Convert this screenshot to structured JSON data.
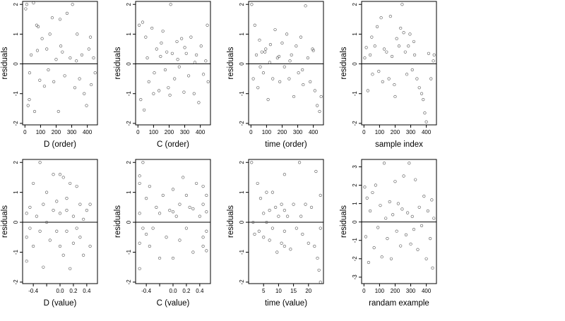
{
  "chart_data": [
    {
      "type": "scatter",
      "xlabel": "D (order)",
      "ylabel": "residuals",
      "xlim": [
        -15,
        465
      ],
      "ylim": [
        -2.05,
        2.1
      ],
      "xticks": [
        0,
        100,
        200,
        300,
        400
      ],
      "yticks": [
        -2,
        -1,
        0,
        1,
        2
      ],
      "reference_line_y": 0,
      "points": [
        [
          5,
          1.85
        ],
        [
          12,
          2.0
        ],
        [
          20,
          -1.4
        ],
        [
          28,
          -1.2
        ],
        [
          40,
          0.3
        ],
        [
          55,
          2.05
        ],
        [
          62,
          -1.6
        ],
        [
          75,
          1.3
        ],
        [
          85,
          1.25
        ],
        [
          95,
          -0.55
        ],
        [
          110,
          0.85
        ],
        [
          125,
          -0.75
        ],
        [
          140,
          0.5
        ],
        [
          160,
          1.0
        ],
        [
          175,
          1.55
        ],
        [
          185,
          -0.6
        ],
        [
          200,
          0.15
        ],
        [
          215,
          -1.6
        ],
        [
          225,
          1.5
        ],
        [
          240,
          0.4
        ],
        [
          255,
          -0.4
        ],
        [
          270,
          1.7
        ],
        [
          290,
          0.2
        ],
        [
          305,
          2.0
        ],
        [
          320,
          -0.8
        ],
        [
          335,
          1.0
        ],
        [
          350,
          -0.5
        ],
        [
          365,
          0.3
        ],
        [
          380,
          -1.0
        ],
        [
          395,
          -1.4
        ],
        [
          410,
          0.5
        ],
        [
          425,
          -0.7
        ],
        [
          440,
          0.2
        ],
        [
          450,
          -0.3
        ],
        [
          30,
          -0.3
        ],
        [
          80,
          0.45
        ],
        [
          150,
          -0.2
        ],
        [
          230,
          0.6
        ],
        [
          330,
          0.1
        ],
        [
          420,
          0.9
        ]
      ]
    },
    {
      "type": "scatter",
      "xlabel": "C (order)",
      "ylabel": "residuals",
      "xlim": [
        -15,
        465
      ],
      "ylim": [
        -2.05,
        2.1
      ],
      "xticks": [
        0,
        100,
        200,
        300,
        400
      ],
      "yticks": [
        -2,
        -1,
        0,
        1,
        2
      ],
      "reference_line_y": 0,
      "points": [
        [
          8,
          1.3
        ],
        [
          18,
          -1.2
        ],
        [
          30,
          1.4
        ],
        [
          40,
          -1.55
        ],
        [
          50,
          0.9
        ],
        [
          70,
          -0.6
        ],
        [
          90,
          1.2
        ],
        [
          105,
          -0.3
        ],
        [
          120,
          0.5
        ],
        [
          135,
          -0.9
        ],
        [
          150,
          0.7
        ],
        [
          160,
          1.1
        ],
        [
          175,
          -0.2
        ],
        [
          185,
          0.4
        ],
        [
          195,
          -0.8
        ],
        [
          210,
          2.0
        ],
        [
          220,
          0.35
        ],
        [
          235,
          -0.5
        ],
        [
          250,
          0.75
        ],
        [
          265,
          -0.1
        ],
        [
          280,
          0.85
        ],
        [
          295,
          -0.95
        ],
        [
          310,
          0.35
        ],
        [
          325,
          -0.4
        ],
        [
          340,
          0.9
        ],
        [
          360,
          -1.0
        ],
        [
          375,
          0.3
        ],
        [
          390,
          -1.3
        ],
        [
          405,
          0.6
        ],
        [
          420,
          -0.35
        ],
        [
          435,
          0.1
        ],
        [
          450,
          -0.6
        ],
        [
          60,
          0.2
        ],
        [
          145,
          0.25
        ],
        [
          255,
          0.15
        ],
        [
          365,
          0.05
        ],
        [
          445,
          1.3
        ],
        [
          100,
          -1.0
        ],
        [
          205,
          -1.05
        ],
        [
          300,
          0.55
        ]
      ]
    },
    {
      "type": "scatter",
      "xlabel": "time (order)",
      "ylabel": "residuals",
      "xlim": [
        -15,
        465
      ],
      "ylim": [
        -2.05,
        2.1
      ],
      "xticks": [
        0,
        100,
        200,
        300,
        400
      ],
      "yticks": [
        -2,
        -1,
        0,
        1,
        2
      ],
      "reference_line_y": 0,
      "points": [
        [
          5,
          2.0
        ],
        [
          15,
          -0.5
        ],
        [
          25,
          1.3
        ],
        [
          35,
          0.3
        ],
        [
          45,
          -0.8
        ],
        [
          55,
          0.8
        ],
        [
          70,
          0.4
        ],
        [
          80,
          -0.3
        ],
        [
          95,
          0.5
        ],
        [
          110,
          -1.2
        ],
        [
          125,
          0.65
        ],
        [
          140,
          -0.5
        ],
        [
          155,
          1.15
        ],
        [
          170,
          0.2
        ],
        [
          185,
          -0.6
        ],
        [
          200,
          0.7
        ],
        [
          215,
          -0.1
        ],
        [
          230,
          1.0
        ],
        [
          245,
          -0.5
        ],
        [
          260,
          0.3
        ],
        [
          275,
          -1.1
        ],
        [
          290,
          0.6
        ],
        [
          305,
          -0.3
        ],
        [
          320,
          0.9
        ],
        [
          335,
          -0.7
        ],
        [
          350,
          1.95
        ],
        [
          365,
          0.2
        ],
        [
          380,
          -0.6
        ],
        [
          395,
          0.5
        ],
        [
          410,
          -0.9
        ],
        [
          425,
          -1.4
        ],
        [
          440,
          -1.6
        ],
        [
          450,
          -1.1
        ],
        [
          90,
          0.4
        ],
        [
          180,
          0.25
        ],
        [
          250,
          0.1
        ],
        [
          330,
          -0.2
        ],
        [
          400,
          0.45
        ],
        [
          120,
          0.05
        ],
        [
          60,
          -0.1
        ]
      ]
    },
    {
      "type": "scatter",
      "xlabel": "sample index",
      "ylabel": "residuals",
      "xlim": [
        -15,
        465
      ],
      "ylim": [
        -2.05,
        2.1
      ],
      "xticks": [
        0,
        100,
        200,
        300,
        400
      ],
      "yticks": [
        -2,
        -1,
        0,
        1,
        2
      ],
      "reference_line_y": 0,
      "points": [
        [
          5,
          0.2
        ],
        [
          15,
          0.55
        ],
        [
          25,
          -0.9
        ],
        [
          40,
          0.3
        ],
        [
          55,
          -0.35
        ],
        [
          70,
          0.6
        ],
        [
          85,
          1.25
        ],
        [
          95,
          -0.25
        ],
        [
          110,
          1.55
        ],
        [
          120,
          -0.6
        ],
        [
          130,
          0.5
        ],
        [
          145,
          0.4
        ],
        [
          160,
          -0.5
        ],
        [
          170,
          1.6
        ],
        [
          180,
          0.25
        ],
        [
          195,
          -0.7
        ],
        [
          210,
          0.85
        ],
        [
          225,
          0.6
        ],
        [
          235,
          1.2
        ],
        [
          245,
          2.0
        ],
        [
          255,
          1.05
        ],
        [
          265,
          0.4
        ],
        [
          275,
          -0.35
        ],
        [
          285,
          0.6
        ],
        [
          295,
          1.0
        ],
        [
          310,
          -0.2
        ],
        [
          325,
          0.3
        ],
        [
          340,
          -0.5
        ],
        [
          355,
          -0.8
        ],
        [
          370,
          -1.0
        ],
        [
          380,
          -1.2
        ],
        [
          390,
          -1.65
        ],
        [
          400,
          -1.95
        ],
        [
          415,
          0.35
        ],
        [
          430,
          -0.5
        ],
        [
          445,
          0.1
        ],
        [
          450,
          0.3
        ],
        [
          50,
          0.9
        ],
        [
          200,
          -1.1
        ],
        [
          320,
          0.75
        ]
      ]
    },
    {
      "type": "scatter",
      "xlabel": "D (value)",
      "ylabel": "residuals",
      "xlim": [
        -0.56,
        0.56
      ],
      "ylim": [
        -2.05,
        2.1
      ],
      "xticks": [
        -0.4,
        -0.2,
        0.0,
        0.2,
        0.4
      ],
      "xtick_labels": [
        "-0.4",
        "",
        "0.0",
        "0.2",
        "0.4"
      ],
      "yticks": [
        -2,
        -1,
        0,
        1,
        2
      ],
      "reference_line_y": 0,
      "points": [
        [
          -0.5,
          -0.5
        ],
        [
          -0.5,
          0.3
        ],
        [
          -0.5,
          -1.3
        ],
        [
          -0.45,
          -0.2
        ],
        [
          -0.45,
          0.5
        ],
        [
          -0.4,
          -0.8
        ],
        [
          -0.4,
          1.3
        ],
        [
          -0.35,
          0.2
        ],
        [
          -0.3,
          -0.3
        ],
        [
          -0.3,
          2.0
        ],
        [
          -0.25,
          0.6
        ],
        [
          -0.25,
          -1.5
        ],
        [
          -0.2,
          0.0
        ],
        [
          -0.2,
          1.0
        ],
        [
          -0.15,
          -0.6
        ],
        [
          -0.1,
          0.4
        ],
        [
          -0.1,
          1.6
        ],
        [
          -0.05,
          -0.3
        ],
        [
          0.0,
          1.6
        ],
        [
          0.0,
          -0.8
        ],
        [
          0.0,
          0.3
        ],
        [
          0.05,
          1.5
        ],
        [
          0.05,
          -1.1
        ],
        [
          0.1,
          0.4
        ],
        [
          0.1,
          -0.3
        ],
        [
          0.1,
          0.8
        ],
        [
          0.15,
          1.3
        ],
        [
          0.15,
          -1.55
        ],
        [
          0.2,
          0.2
        ],
        [
          0.2,
          -0.7
        ],
        [
          0.25,
          1.2
        ],
        [
          0.3,
          -0.5
        ],
        [
          0.3,
          0.6
        ],
        [
          0.35,
          -1.1
        ],
        [
          0.4,
          0.4
        ],
        [
          0.45,
          -0.8
        ],
        [
          0.45,
          0.6
        ],
        [
          -0.05,
          0.7
        ],
        [
          0.25,
          -0.2
        ],
        [
          0.35,
          0.1
        ]
      ]
    },
    {
      "type": "scatter",
      "xlabel": "C (value)",
      "ylabel": "residuals",
      "xlim": [
        -0.56,
        0.56
      ],
      "ylim": [
        -2.05,
        2.1
      ],
      "xticks": [
        -0.4,
        -0.2,
        0.0,
        0.2,
        0.4
      ],
      "xtick_labels": [
        "-0.4",
        "",
        "0.0",
        "0.2",
        "0.4"
      ],
      "yticks": [
        -2,
        -1,
        0,
        1,
        2
      ],
      "reference_line_y": 0,
      "points": [
        [
          -0.5,
          1.3
        ],
        [
          -0.5,
          -0.7
        ],
        [
          -0.5,
          0.3
        ],
        [
          -0.5,
          -1.55
        ],
        [
          -0.5,
          1.55
        ],
        [
          -0.45,
          2.0
        ],
        [
          -0.45,
          -0.2
        ],
        [
          -0.4,
          0.8
        ],
        [
          -0.35,
          1.2
        ],
        [
          -0.35,
          -0.8
        ],
        [
          -0.3,
          -0.2
        ],
        [
          -0.25,
          0.5
        ],
        [
          -0.2,
          -1.2
        ],
        [
          -0.15,
          0.9
        ],
        [
          -0.1,
          -0.5
        ],
        [
          -0.05,
          0.4
        ],
        [
          0.0,
          -1.2
        ],
        [
          0.0,
          1.1
        ],
        [
          0.05,
          0.2
        ],
        [
          0.1,
          0.6
        ],
        [
          0.1,
          -0.6
        ],
        [
          0.15,
          1.5
        ],
        [
          0.2,
          -0.2
        ],
        [
          0.25,
          0.5
        ],
        [
          0.3,
          -1.0
        ],
        [
          0.35,
          1.3
        ],
        [
          0.4,
          0.2
        ],
        [
          0.45,
          -0.5
        ],
        [
          0.45,
          -0.8
        ],
        [
          0.45,
          0.6
        ],
        [
          0.45,
          1.2
        ],
        [
          0.5,
          -0.3
        ],
        [
          0.5,
          0.9
        ],
        [
          0.5,
          -0.95
        ],
        [
          0.5,
          0.35
        ],
        [
          -0.4,
          -0.4
        ],
        [
          0.0,
          0.35
        ],
        [
          0.2,
          0.9
        ],
        [
          -0.2,
          0.3
        ],
        [
          0.3,
          0.45
        ]
      ]
    },
    {
      "type": "scatter",
      "xlabel": "time (value)",
      "ylabel": "residuals",
      "xlim": [
        0,
        25
      ],
      "ylim": [
        -2.05,
        2.1
      ],
      "xticks": [
        5,
        10,
        15,
        20
      ],
      "yticks": [
        -2,
        -1,
        0,
        1,
        2
      ],
      "reference_line_y": 0,
      "points": [
        [
          1,
          2.0
        ],
        [
          1.5,
          0.0
        ],
        [
          2,
          -0.4
        ],
        [
          3,
          1.3
        ],
        [
          3.5,
          -0.3
        ],
        [
          4,
          0.8
        ],
        [
          5,
          0.3
        ],
        [
          5,
          -0.5
        ],
        [
          6,
          1.0
        ],
        [
          6,
          0.0
        ],
        [
          7,
          0.4
        ],
        [
          7,
          -0.6
        ],
        [
          8,
          1.0
        ],
        [
          8,
          -0.2
        ],
        [
          9,
          0.5
        ],
        [
          9.5,
          -1.0
        ],
        [
          10,
          0.2
        ],
        [
          11,
          0.6
        ],
        [
          11,
          -0.7
        ],
        [
          12,
          1.6
        ],
        [
          12,
          0.4
        ],
        [
          12,
          -0.3
        ],
        [
          12,
          -0.8
        ],
        [
          13,
          0.2
        ],
        [
          14,
          -0.9
        ],
        [
          15,
          0.6
        ],
        [
          16,
          -0.2
        ],
        [
          17,
          2.0
        ],
        [
          17.5,
          0.2
        ],
        [
          18,
          -0.4
        ],
        [
          19,
          0.6
        ],
        [
          20,
          -0.7
        ],
        [
          21,
          0.5
        ],
        [
          22,
          -0.8
        ],
        [
          22.5,
          1.7
        ],
        [
          23,
          -1.2
        ],
        [
          23.5,
          -1.6
        ],
        [
          24,
          -2.0
        ],
        [
          24,
          0.9
        ],
        [
          24,
          -0.2
        ]
      ]
    },
    {
      "type": "scatter",
      "xlabel": "randam example",
      "ylabel": "residuals",
      "xlim": [
        -15,
        465
      ],
      "ylim": [
        -3.35,
        3.4
      ],
      "xticks": [
        0,
        100,
        200,
        300,
        400
      ],
      "yticks": [
        -3,
        -2,
        -1,
        0,
        1,
        2,
        3
      ],
      "reference_line_y": 0,
      "points": [
        [
          5,
          1.9
        ],
        [
          12,
          -0.8
        ],
        [
          20,
          1.3
        ],
        [
          30,
          -2.2
        ],
        [
          40,
          0.6
        ],
        [
          55,
          1.6
        ],
        [
          65,
          -1.4
        ],
        [
          75,
          2.0
        ],
        [
          90,
          -0.3
        ],
        [
          105,
          0.9
        ],
        [
          115,
          -1.9
        ],
        [
          130,
          3.2
        ],
        [
          140,
          0.2
        ],
        [
          150,
          -0.9
        ],
        [
          165,
          1.1
        ],
        [
          175,
          -2.0
        ],
        [
          185,
          0.4
        ],
        [
          200,
          2.2
        ],
        [
          210,
          -0.5
        ],
        [
          220,
          1.0
        ],
        [
          235,
          -1.3
        ],
        [
          245,
          0.7
        ],
        [
          255,
          2.5
        ],
        [
          270,
          -0.7
        ],
        [
          280,
          0.5
        ],
        [
          290,
          3.2
        ],
        [
          300,
          -1.2
        ],
        [
          310,
          0.3
        ],
        [
          320,
          -0.4
        ],
        [
          330,
          2.3
        ],
        [
          345,
          -1.5
        ],
        [
          355,
          0.8
        ],
        [
          370,
          -0.2
        ],
        [
          385,
          1.4
        ],
        [
          400,
          -2.0
        ],
        [
          410,
          0.6
        ],
        [
          425,
          -0.9
        ],
        [
          435,
          1.2
        ],
        [
          440,
          -2.5
        ],
        [
          448,
          0.2
        ]
      ]
    }
  ]
}
